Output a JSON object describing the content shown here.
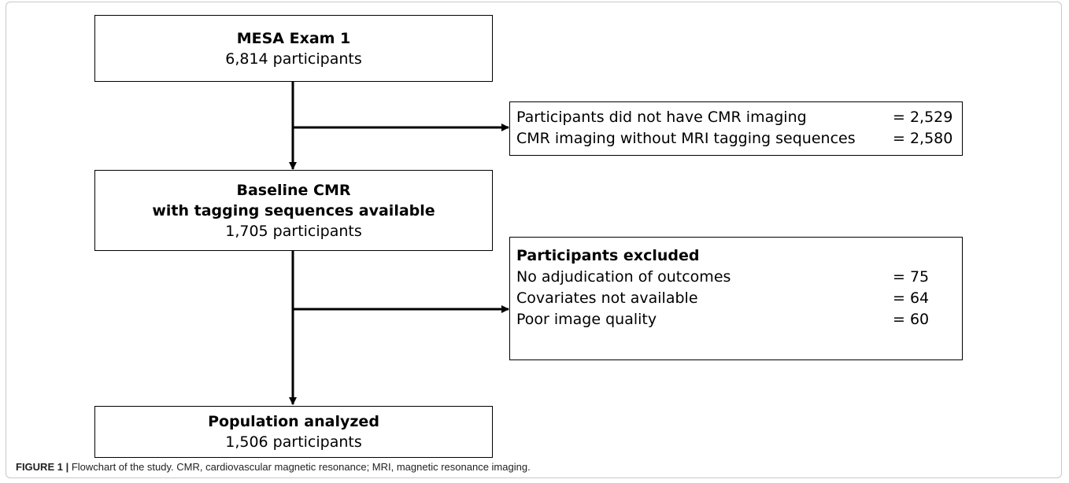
{
  "boxes": [
    {
      "title": [
        "MESA Exam 1"
      ],
      "count": "6,814 participants"
    },
    {
      "title": [
        "Baseline CMR",
        "with tagging sequences available"
      ],
      "count": "1,705 participants"
    },
    {
      "title": [
        "Population analyzed"
      ],
      "count": "1,506 participants"
    }
  ],
  "exclusions": [
    {
      "rows": [
        {
          "label": "Participants did not have CMR imaging",
          "value": "= 2,529"
        },
        {
          "label": "CMR imaging without MRI tagging sequences",
          "value": "= 2,580"
        }
      ]
    },
    {
      "title": "Participants excluded",
      "rows": [
        {
          "label": "No adjudication of outcomes",
          "value": "= 75"
        },
        {
          "label": "Covariates not available",
          "value": "= 64"
        },
        {
          "label": "Poor image quality",
          "value": "= 60"
        }
      ]
    }
  ],
  "caption": {
    "label": "FIGURE 1 |",
    "text": "Flowchart of the study. CMR, cardiovascular magnetic resonance; MRI, magnetic resonance imaging."
  }
}
